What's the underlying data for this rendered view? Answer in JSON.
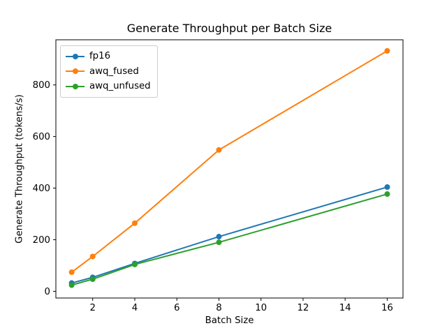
{
  "chart_data": {
    "type": "line",
    "title": "Generate Throughput per Batch Size",
    "xlabel": "Batch Size",
    "ylabel": "Generate Throughput (tokens/s)",
    "x": [
      1,
      2,
      4,
      8,
      16
    ],
    "series": [
      {
        "name": "fp16",
        "color": "#1f77b4",
        "values": [
          32,
          54,
          108,
          212,
          404
        ]
      },
      {
        "name": "awq_fused",
        "color": "#ff7f0e",
        "values": [
          74,
          135,
          264,
          548,
          932
        ]
      },
      {
        "name": "awq_unfused",
        "color": "#2ca02c",
        "values": [
          24,
          47,
          104,
          190,
          377
        ]
      }
    ],
    "xticks": [
      2,
      4,
      6,
      8,
      10,
      12,
      14,
      16
    ],
    "yticks": [
      0,
      200,
      400,
      600,
      800
    ],
    "xlim": [
      0.25,
      16.75
    ],
    "ylim": [
      -26,
      975
    ],
    "grid": false,
    "marker": "o",
    "legend_position": "upper left",
    "spine_color": "#000000",
    "tick_color": "#000000",
    "background": "#ffffff"
  }
}
